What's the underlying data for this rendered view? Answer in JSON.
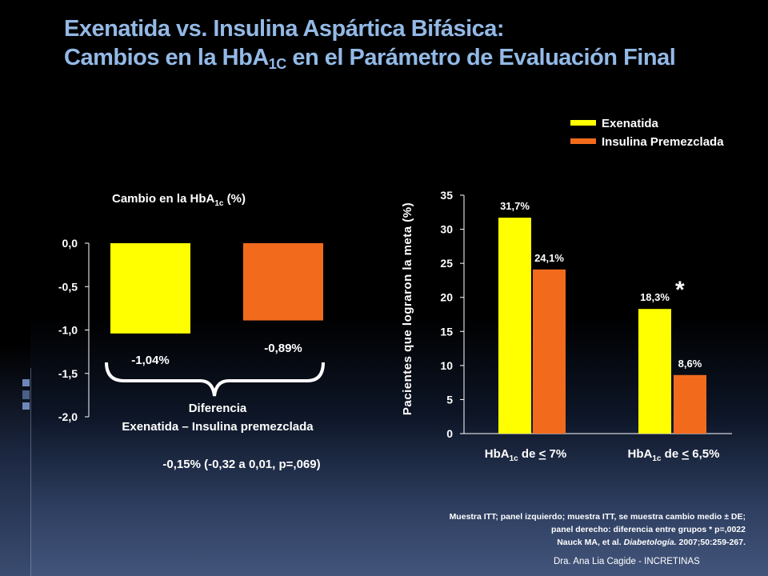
{
  "slide": {
    "title_line1": "Exenatida vs. Insulina Aspártica Bifásica:",
    "title_line2_pre": "Cambios en la HbA",
    "title_line2_sub": "1C",
    "title_line2_post": " en el Parámetro de Evaluación Final",
    "footnote_line1": "Muestra ITT; panel izquierdo; muestra ITT, se muestra cambio medio ± DE;",
    "footnote_line2": "panel derecho: diferencia entre grupos * p=,0022",
    "footnote_line3_pre": "Nauck MA, et al. ",
    "footnote_line3_journal": "Diabetología.",
    "footnote_line3_post": " 2007;50:259-267.",
    "signature": "Dra. Ana Lia Cagide - INCRETINAS"
  },
  "legend": {
    "items": [
      {
        "label": "Exenatida",
        "color": "#ffff00"
      },
      {
        "label": "Insulina Premezclada",
        "color": "#f26b1d"
      }
    ]
  },
  "chart_data": [
    {
      "type": "bar",
      "title_pre": "Cambio en la HbA",
      "title_sub": "1c",
      "title_post": " (%)",
      "ylim": [
        -2.0,
        0.0
      ],
      "yticks": [
        0.0,
        -0.5,
        -1.0,
        -1.5,
        -2.0
      ],
      "ytick_labels": [
        "0,0",
        "-0,5",
        "-1,0",
        "-1,5",
        "-2,0"
      ],
      "series": [
        {
          "name": "Exenatida",
          "value": -1.04,
          "label": "-1,04%",
          "color": "#ffff00"
        },
        {
          "name": "Insulina Premezclada",
          "value": -0.89,
          "label": "-0,89%",
          "color": "#f26b1d"
        }
      ],
      "annotation_line1": "Diferencia",
      "annotation_line2": "Exenatida – Insulina premezclada",
      "annotation_line3": "-0,15% (-0,32 a 0,01, p=,069)"
    },
    {
      "type": "bar",
      "ylabel": "Pacientes que lograron la meta (%)",
      "ylim": [
        0,
        35
      ],
      "yticks": [
        0,
        5,
        10,
        15,
        20,
        25,
        30,
        35
      ],
      "ytick_labels": [
        "0",
        "5",
        "10",
        "15",
        "20",
        "25",
        "30",
        "35"
      ],
      "categories": [
        {
          "pre": "HbA",
          "sub": "1c",
          "mid": " de ",
          "sym": "<",
          "post": " 7%"
        },
        {
          "pre": "HbA",
          "sub": "1c",
          "mid": " de ",
          "sym": "<",
          "post": " 6,5%"
        }
      ],
      "series": [
        {
          "name": "Exenatida",
          "color": "#ffff00",
          "values": [
            31.7,
            18.3
          ],
          "labels": [
            "31,7%",
            "18,3%"
          ]
        },
        {
          "name": "Insulina Premezclada",
          "color": "#f26b1d",
          "values": [
            24.1,
            8.6
          ],
          "labels": [
            "24,1%",
            "8,6%"
          ]
        }
      ],
      "significance_marker": "*"
    }
  ]
}
